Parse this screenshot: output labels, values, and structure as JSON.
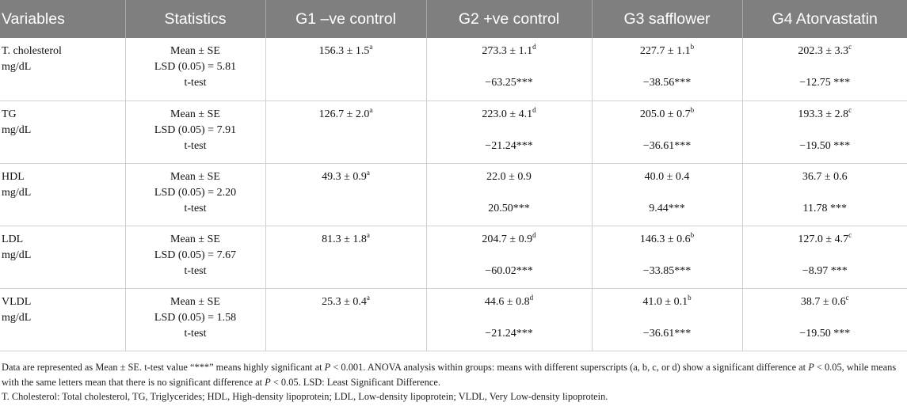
{
  "table": {
    "headers": [
      "Variables",
      "Statistics",
      "G1 –ve control",
      "G2 +ve control",
      "G3 safflower",
      "G4 Atorvastatin"
    ],
    "rows": [
      {
        "var_name": "T. cholesterol",
        "unit": "mg/dL",
        "stat_mean": "Mean ± SE",
        "stat_lsd": "LSD (0.05) = 5.81",
        "stat_t": "t-test",
        "g1": {
          "mean": "156.3 ± 1.5",
          "sup": "a",
          "t": ""
        },
        "g2": {
          "mean": "273.3 ± 1.1",
          "sup": "d",
          "t": "−63.25***"
        },
        "g3": {
          "mean": "227.7 ± 1.1",
          "sup": "b",
          "t": "−38.56***"
        },
        "g4": {
          "mean": "202.3 ± 3.3",
          "sup": "c",
          "t": "−12.75 ***"
        }
      },
      {
        "var_name": "TG",
        "unit": "mg/dL",
        "stat_mean": "Mean ± SE",
        "stat_lsd": "LSD (0.05) = 7.91",
        "stat_t": "t-test",
        "g1": {
          "mean": "126.7 ± 2.0",
          "sup": "a",
          "t": ""
        },
        "g2": {
          "mean": "223.0 ± 4.1",
          "sup": "d",
          "t": "−21.24***"
        },
        "g3": {
          "mean": "205.0 ± 0.7",
          "sup": "b",
          "t": "−36.61***"
        },
        "g4": {
          "mean": "193.3 ± 2.8",
          "sup": "c",
          "t": "−19.50 ***"
        }
      },
      {
        "var_name": "HDL",
        "unit": "mg/dL",
        "stat_mean": "Mean ± SE",
        "stat_lsd": "LSD (0.05) = 2.20",
        "stat_t": "t-test",
        "g1": {
          "mean": "49.3 ± 0.9",
          "sup": "a",
          "t": ""
        },
        "g2": {
          "mean": "22.0 ± 0.9",
          "sup": "",
          "t": "20.50***"
        },
        "g3": {
          "mean": "40.0 ± 0.4",
          "sup": "",
          "t": "9.44***"
        },
        "g4": {
          "mean": "36.7 ± 0.6",
          "sup": "",
          "t": "11.78 ***"
        }
      },
      {
        "var_name": "LDL",
        "unit": "mg/dL",
        "stat_mean": "Mean ± SE",
        "stat_lsd": "LSD (0.05) = 7.67",
        "stat_t": "t-test",
        "g1": {
          "mean": "81.3 ± 1.8",
          "sup": "a",
          "t": ""
        },
        "g2": {
          "mean": "204.7 ± 0.9",
          "sup": "d",
          "t": "−60.02***"
        },
        "g3": {
          "mean": "146.3 ± 0.6",
          "sup": "b",
          "t": "−33.85***"
        },
        "g4": {
          "mean": "127.0 ± 4.7",
          "sup": "c",
          "t": "−8.97 ***"
        }
      },
      {
        "var_name": "VLDL",
        "unit": "mg/dL",
        "stat_mean": "Mean ± SE",
        "stat_lsd": "LSD (0.05) = 1.58",
        "stat_t": "t-test",
        "g1": {
          "mean": "25.3 ± 0.4",
          "sup": "a",
          "t": ""
        },
        "g2": {
          "mean": "44.6 ± 0.8",
          "sup": "d",
          "t": "−21.24***"
        },
        "g3": {
          "mean": "41.0 ± 0.1",
          "sup": "b",
          "t": "−36.61***"
        },
        "g4": {
          "mean": "38.7 ± 0.6",
          "sup": "c",
          "t": "−19.50 ***"
        }
      }
    ]
  },
  "notes": {
    "line1_a": "Data are represented as Mean ± SE. t-test value “***” means highly significant at ",
    "p_symbol": "P",
    "line1_b": " < 0.001. ANOVA analysis within groups: means with different superscripts (a, b, c, or d) show a significant difference at ",
    "line1_c": " < 0.05, while means with the same letters mean that there is no significant difference at ",
    "line1_d": " < 0.05. LSD: Least Significant Difference.",
    "line2": "T. Cholesterol: Total cholesterol, TG, Triglycerides; HDL, High-density lipoprotein; LDL, Low-density lipoprotein; VLDL, Very Low-density lipoprotein."
  }
}
